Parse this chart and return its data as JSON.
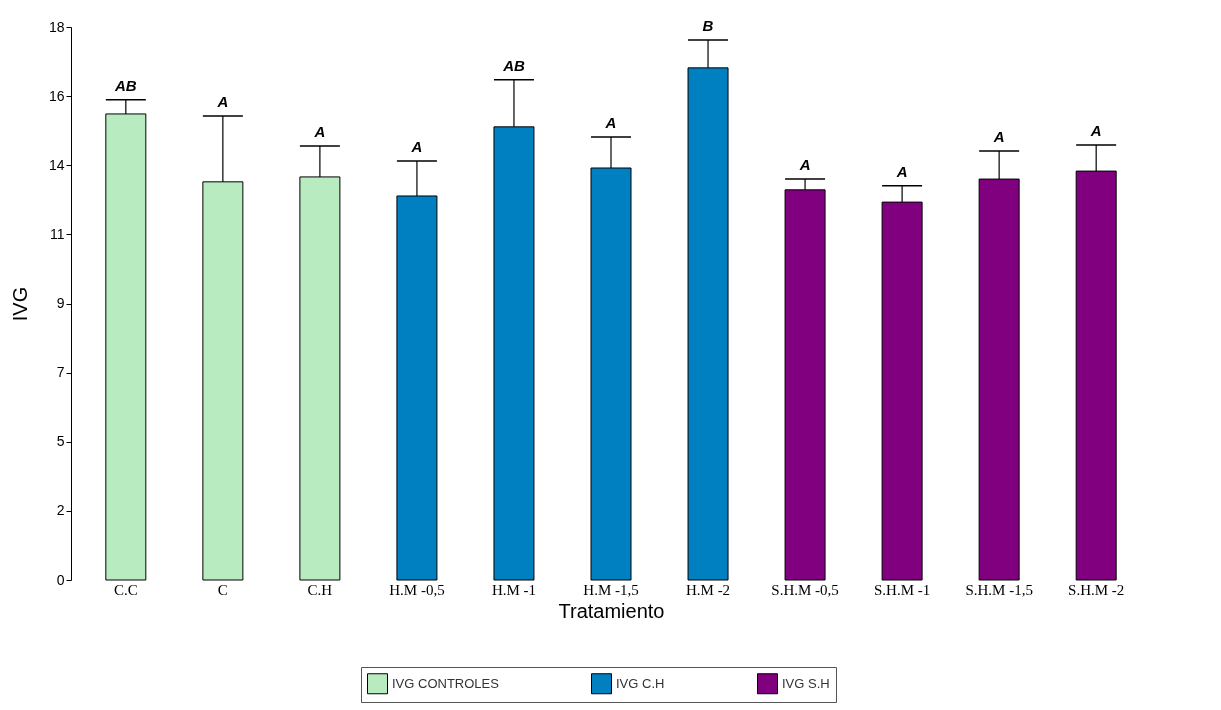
{
  "chart_data": {
    "type": "bar",
    "xlabel": "Tratamiento",
    "ylabel": "IVG",
    "categories": [
      "C.C",
      "C",
      "C.H",
      "H.M -0,5",
      "H.M -1",
      "H.M -1,5",
      "H.M -2",
      "S.H.M -0,5",
      "S.H.M -1",
      "S.H.M -1,5",
      "S.H.M -2"
    ],
    "series": [
      {
        "name": "IVG CONTROLES",
        "color": "#b8ecc0",
        "values": [
          15.17,
          12.96,
          13.12,
          null,
          null,
          null,
          null,
          null,
          null,
          null,
          null
        ],
        "errors": [
          [
            15.17,
            15.63
          ],
          [
            12.96,
            15.1
          ],
          [
            13.12,
            14.13
          ],
          null,
          null,
          null,
          null,
          null,
          null,
          null,
          null
        ]
      },
      {
        "name": "IVG C.H",
        "color": "#0080c0",
        "values": [
          null,
          null,
          null,
          12.5,
          14.75,
          13.41,
          16.67,
          null,
          null,
          null,
          null
        ],
        "errors": [
          null,
          null,
          null,
          [
            12.5,
            13.64
          ],
          [
            14.75,
            16.28
          ],
          [
            13.41,
            14.42
          ],
          [
            16.67,
            17.58
          ],
          null,
          null,
          null,
          null
        ]
      },
      {
        "name": "IVG S.H",
        "color": "#800080",
        "values": [
          null,
          null,
          null,
          null,
          null,
          null,
          null,
          12.7,
          12.3,
          13.05,
          13.31
        ],
        "errors": [
          null,
          null,
          null,
          null,
          null,
          null,
          null,
          [
            12.7,
            13.05
          ],
          [
            12.3,
            12.83
          ],
          [
            13.05,
            13.96
          ],
          [
            13.31,
            14.16
          ]
        ]
      }
    ],
    "ylim": [
      0,
      18
    ],
    "yticks": [
      0,
      {
        "value": 2.25,
        "label": "2"
      },
      {
        "value": 4.5,
        "label": "5"
      },
      {
        "value": 6.75,
        "label": "7"
      },
      9,
      {
        "value": 11.25,
        "label": "11"
      },
      {
        "value": 13.5,
        "label": "14"
      },
      {
        "value": 15.75,
        "label": "16"
      },
      18
    ],
    "grid": false,
    "legend": "bottom",
    "annotations": [
      {
        "text": "AB",
        "x": "C.C",
        "y": 15.63
      },
      {
        "text": "A",
        "x": "C",
        "y": 15.1
      },
      {
        "text": "A",
        "x": "C.H",
        "y": 14.13
      },
      {
        "text": "A",
        "x": "H.M -0,5",
        "y": 13.64
      },
      {
        "text": "AB",
        "x": "H.M -1",
        "y": 16.28
      },
      {
        "text": "A",
        "x": "H.M -1,5",
        "y": 14.42
      },
      {
        "text": "B",
        "x": "H.M -2",
        "y": 17.58
      },
      {
        "text": "A",
        "x": "S.H.M -0,5",
        "y": 13.05
      },
      {
        "text": "A",
        "x": "S.H.M -1",
        "y": 12.83
      },
      {
        "text": "A",
        "x": "S.H.M -1,5",
        "y": 13.96
      },
      {
        "text": "A",
        "x": "S.H.M -2",
        "y": 14.16
      }
    ]
  }
}
